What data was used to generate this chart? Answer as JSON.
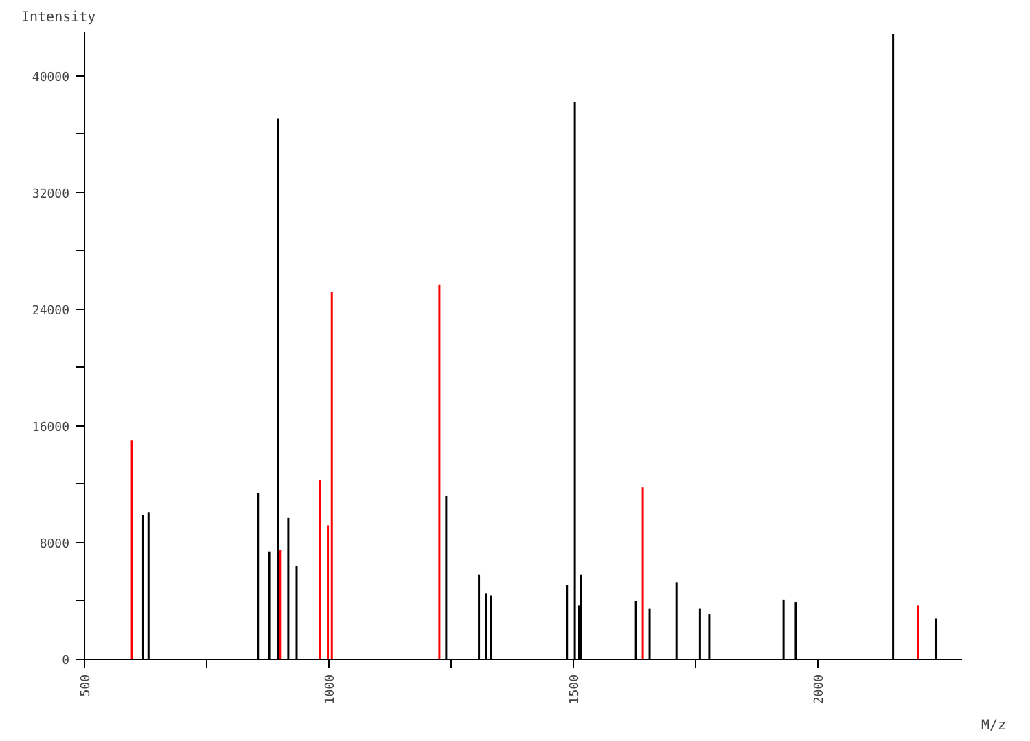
{
  "chart_data": {
    "type": "bar",
    "xlabel": "M/z",
    "ylabel": "Intensity",
    "x": [
      597,
      620,
      631,
      855,
      878,
      896,
      900,
      917,
      934,
      982,
      998,
      1006,
      1226,
      1240,
      1307,
      1321,
      1332,
      1487,
      1503,
      1512,
      1515,
      1628,
      1642,
      1656,
      1711,
      1759,
      1778,
      1930,
      1955,
      2154,
      2205,
      2241
    ],
    "values": [
      15000,
      9900,
      10100,
      11400,
      7400,
      37100,
      7500,
      9700,
      6400,
      12300,
      9200,
      25200,
      25700,
      11200,
      5800,
      4500,
      4400,
      5100,
      38200,
      3700,
      5800,
      4000,
      11800,
      3500,
      5300,
      3500,
      3100,
      4100,
      3900,
      42900,
      3700,
      2800
    ],
    "colors": [
      "#ff0000",
      "#000000",
      "#000000",
      "#000000",
      "#000000",
      "#000000",
      "#ff0000",
      "#000000",
      "#000000",
      "#ff0000",
      "#ff0000",
      "#ff0000",
      "#ff0000",
      "#000000",
      "#000000",
      "#000000",
      "#000000",
      "#000000",
      "#000000",
      "#000000",
      "#000000",
      "#000000",
      "#ff0000",
      "#000000",
      "#000000",
      "#000000",
      "#000000",
      "#000000",
      "#000000",
      "#000000",
      "#ff0000",
      "#000000"
    ],
    "xlim": [
      500,
      2295
    ],
    "ylim": [
      0,
      43000
    ],
    "xticks": [
      500,
      {
        "value": 750,
        "label": null
      },
      1000,
      {
        "value": 1250,
        "label": null
      },
      1500,
      {
        "value": 1750,
        "label": null
      },
      2000
    ],
    "yticks": [
      0,
      {
        "value": 4000,
        "label": null
      },
      8000,
      {
        "value": 12000,
        "label": null
      },
      16000,
      {
        "value": 20000,
        "label": null
      },
      24000,
      {
        "value": 28000,
        "label": null
      },
      32000,
      {
        "value": 36000,
        "label": null
      },
      40000
    ],
    "grid": false
  }
}
